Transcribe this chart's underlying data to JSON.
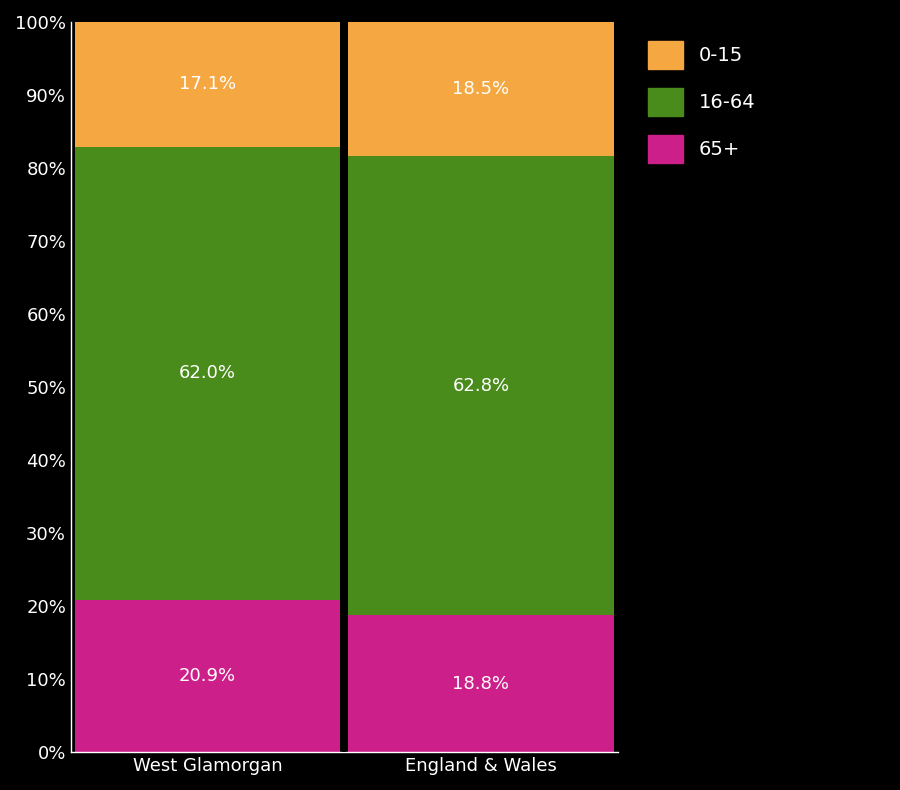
{
  "categories": [
    "West Glamorgan",
    "England & Wales"
  ],
  "segments": {
    "65+": [
      20.9,
      18.8
    ],
    "16-64": [
      62.0,
      62.8
    ],
    "0-15": [
      17.1,
      18.5
    ]
  },
  "colors": {
    "65+": "#cc1f8a",
    "16-64": "#4a8c1c",
    "0-15": "#f5a742"
  },
  "labels": {
    "65+": [
      "20.9%",
      "18.8%"
    ],
    "16-64": [
      "62.0%",
      "62.8%"
    ],
    "0-15": [
      "17.1%",
      "18.5%"
    ]
  },
  "ytick_labels": [
    "0%",
    "10%",
    "20%",
    "30%",
    "40%",
    "50%",
    "60%",
    "70%",
    "80%",
    "90%",
    "100%"
  ],
  "ytick_values": [
    0,
    10,
    20,
    30,
    40,
    50,
    60,
    70,
    80,
    90,
    100
  ],
  "legend_labels": [
    "0-15",
    "16-64",
    "65+"
  ],
  "background_color": "#000000",
  "text_color": "#ffffff",
  "bar_width": 0.97,
  "label_fontsize": 13,
  "tick_fontsize": 13,
  "legend_fontsize": 14,
  "separator_color": "#000000",
  "separator_linewidth": 3
}
